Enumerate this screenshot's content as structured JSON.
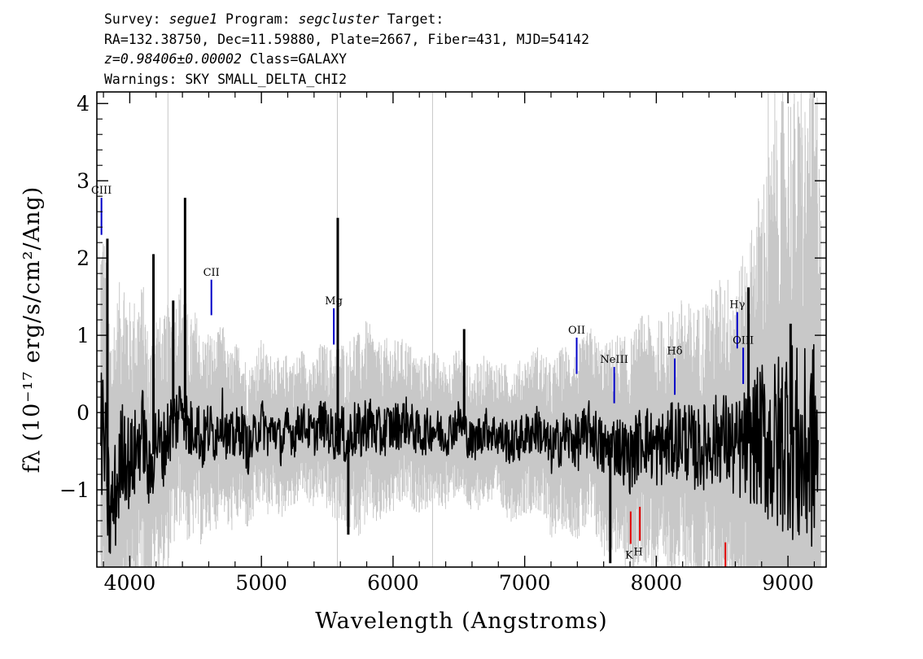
{
  "header": {
    "line1": {
      "survey_label": "Survey: ",
      "survey": "segue1",
      "program_label": " Program: ",
      "program": "segcluster",
      "target_label": " Target:"
    },
    "line2": "RA=132.38750, Dec=11.59880, Plate=2667, Fiber=431, MJD=54142",
    "line3": {
      "redshift": "z=0.98406±0.00002",
      "class": " Class=GALAXY"
    },
    "line4": "Warnings: SKY SMALL_DELTA_CHI2"
  },
  "chart_data": {
    "type": "line",
    "xlabel": "Wavelength (Angstroms)",
    "ylabel": "fλ (10⁻¹⁷ erg/s/cm²/Ang)",
    "xlim": [
      3750,
      9290
    ],
    "ylim": [
      -2.0,
      4.15
    ],
    "x_ticks": [
      4000,
      5000,
      6000,
      7000,
      8000,
      9000
    ],
    "y_ticks": [
      -1,
      0,
      1,
      2,
      3,
      4
    ],
    "grid": false,
    "colors": {
      "spectrum": "#000000",
      "noise": "#c8c8c8",
      "emission": "#0000c8",
      "absorption": "#e00000"
    },
    "series": [
      {
        "role": "flux",
        "x": [
          3800,
          3850,
          3900,
          3950,
          4000,
          4050,
          4100,
          4150,
          4200,
          4250,
          4300,
          4350,
          4400,
          4450,
          4500,
          4550,
          4600,
          4650,
          4700,
          4750,
          4800,
          4850,
          4900,
          4950,
          5000,
          5050,
          5100,
          5150,
          5200,
          5250,
          5300,
          5350,
          5400,
          5450,
          5500,
          5550,
          5600,
          5650,
          5700,
          5750,
          5800,
          5850,
          5900,
          5950,
          6000,
          6100,
          6200,
          6300,
          6400,
          6500,
          6600,
          6700,
          6800,
          6900,
          7000,
          7100,
          7200,
          7300,
          7400,
          7500,
          7600,
          7700,
          7800,
          7900,
          8000,
          8100,
          8200,
          8300,
          8400,
          8500,
          8600,
          8700,
          8800,
          8900,
          9000,
          9100,
          9200
        ],
        "y": [
          -0.3,
          -1.4,
          -1.0,
          -0.4,
          -0.7,
          -0.5,
          -0.2,
          -0.9,
          -0.3,
          -0.5,
          -0.2,
          -0.1,
          0.2,
          -0.3,
          -0.1,
          -0.4,
          -0.2,
          -0.3,
          0.0,
          -0.4,
          -0.3,
          -0.2,
          -0.5,
          -0.3,
          -0.1,
          -0.3,
          -0.2,
          -0.4,
          -0.2,
          -0.3,
          -0.1,
          -0.2,
          -0.3,
          -0.1,
          -0.2,
          -0.3,
          -0.2,
          -0.4,
          -0.2,
          -0.3,
          -0.1,
          -0.2,
          -0.3,
          -0.2,
          -0.2,
          -0.1,
          -0.3,
          -0.2,
          -0.3,
          -0.1,
          -0.4,
          -0.2,
          -0.3,
          -0.4,
          -0.3,
          -0.2,
          -0.5,
          -0.3,
          -0.4,
          -0.2,
          -0.5,
          -0.4,
          -0.6,
          -0.3,
          -0.5,
          -0.4,
          -0.3,
          -0.5,
          -0.4,
          -0.3,
          -0.5,
          -0.4,
          -0.3,
          -0.5,
          -0.2,
          -0.6,
          -0.4
        ],
        "spikes": [
          {
            "x": 4420,
            "y": 2.78
          },
          {
            "x": 4180,
            "y": 2.05
          },
          {
            "x": 3830,
            "y": 2.25
          },
          {
            "x": 5580,
            "y": 2.52
          },
          {
            "x": 4330,
            "y": 1.45
          },
          {
            "x": 6540,
            "y": 1.08
          },
          {
            "x": 8700,
            "y": 1.62
          },
          {
            "x": 9020,
            "y": 1.15
          },
          {
            "x": 5660,
            "y": -1.58
          },
          {
            "x": 7650,
            "y": -1.95
          }
        ]
      },
      {
        "role": "noise",
        "x": [
          3800,
          3900,
          4000,
          4100,
          4200,
          4300,
          4400,
          4500,
          4600,
          4700,
          4800,
          4900,
          5000,
          5100,
          5200,
          5300,
          5400,
          5500,
          5600,
          5700,
          5800,
          5900,
          6000,
          6100,
          6200,
          6300,
          6400,
          6500,
          6600,
          6700,
          6800,
          6900,
          7000,
          7100,
          7200,
          7300,
          7400,
          7500,
          7600,
          7700,
          7800,
          7900,
          8000,
          8100,
          8200,
          8300,
          8400,
          8500,
          8600,
          8700,
          8800,
          8900,
          9000,
          9100,
          9200
        ],
        "y": [
          2.4,
          2.1,
          1.8,
          1.6,
          1.4,
          1.4,
          1.3,
          1.2,
          1.1,
          1.0,
          1.0,
          0.9,
          0.9,
          0.85,
          0.85,
          0.8,
          0.8,
          0.9,
          1.0,
          1.1,
          1.1,
          1.0,
          0.95,
          0.9,
          0.85,
          0.85,
          0.8,
          0.8,
          0.8,
          0.8,
          0.8,
          0.85,
          0.85,
          0.9,
          0.95,
          1.0,
          1.05,
          1.1,
          1.15,
          1.2,
          1.3,
          1.35,
          1.4,
          1.45,
          1.5,
          1.55,
          1.65,
          1.75,
          1.9,
          2.2,
          2.8,
          3.5,
          3.8,
          3.9,
          4.0
        ]
      }
    ],
    "lines": [
      {
        "label": "CIII",
        "x": 3785,
        "y_low": 2.3,
        "y_high": 2.78,
        "kind": "emission"
      },
      {
        "label": "CII",
        "x": 4620,
        "y_low": 1.26,
        "y_high": 1.72,
        "kind": "emission"
      },
      {
        "label": "Mg",
        "x": 5550,
        "y_low": 0.88,
        "y_high": 1.35,
        "kind": "emission"
      },
      {
        "label": "OII",
        "x": 7395,
        "y_low": 0.5,
        "y_high": 0.97,
        "kind": "emission"
      },
      {
        "label": "NeIII",
        "x": 7680,
        "y_low": 0.12,
        "y_high": 0.59,
        "kind": "emission"
      },
      {
        "label": "Hδ",
        "x": 8140,
        "y_low": 0.23,
        "y_high": 0.7,
        "kind": "emission"
      },
      {
        "label": "Hγ",
        "x": 8615,
        "y_low": 0.83,
        "y_high": 1.3,
        "kind": "emission"
      },
      {
        "label": "OIII",
        "x": 8660,
        "y_low": 0.37,
        "y_high": 0.84,
        "kind": "emission"
      },
      {
        "label": "K",
        "x": 7805,
        "y_low": -1.7,
        "y_high": -1.28,
        "kind": "absorption"
      },
      {
        "label": "H",
        "x": 7875,
        "y_low": -1.66,
        "y_high": -1.22,
        "kind": "absorption"
      },
      {
        "label": "",
        "x": 8525,
        "y_low": -2.0,
        "y_high": -1.68,
        "kind": "absorption"
      }
    ]
  }
}
